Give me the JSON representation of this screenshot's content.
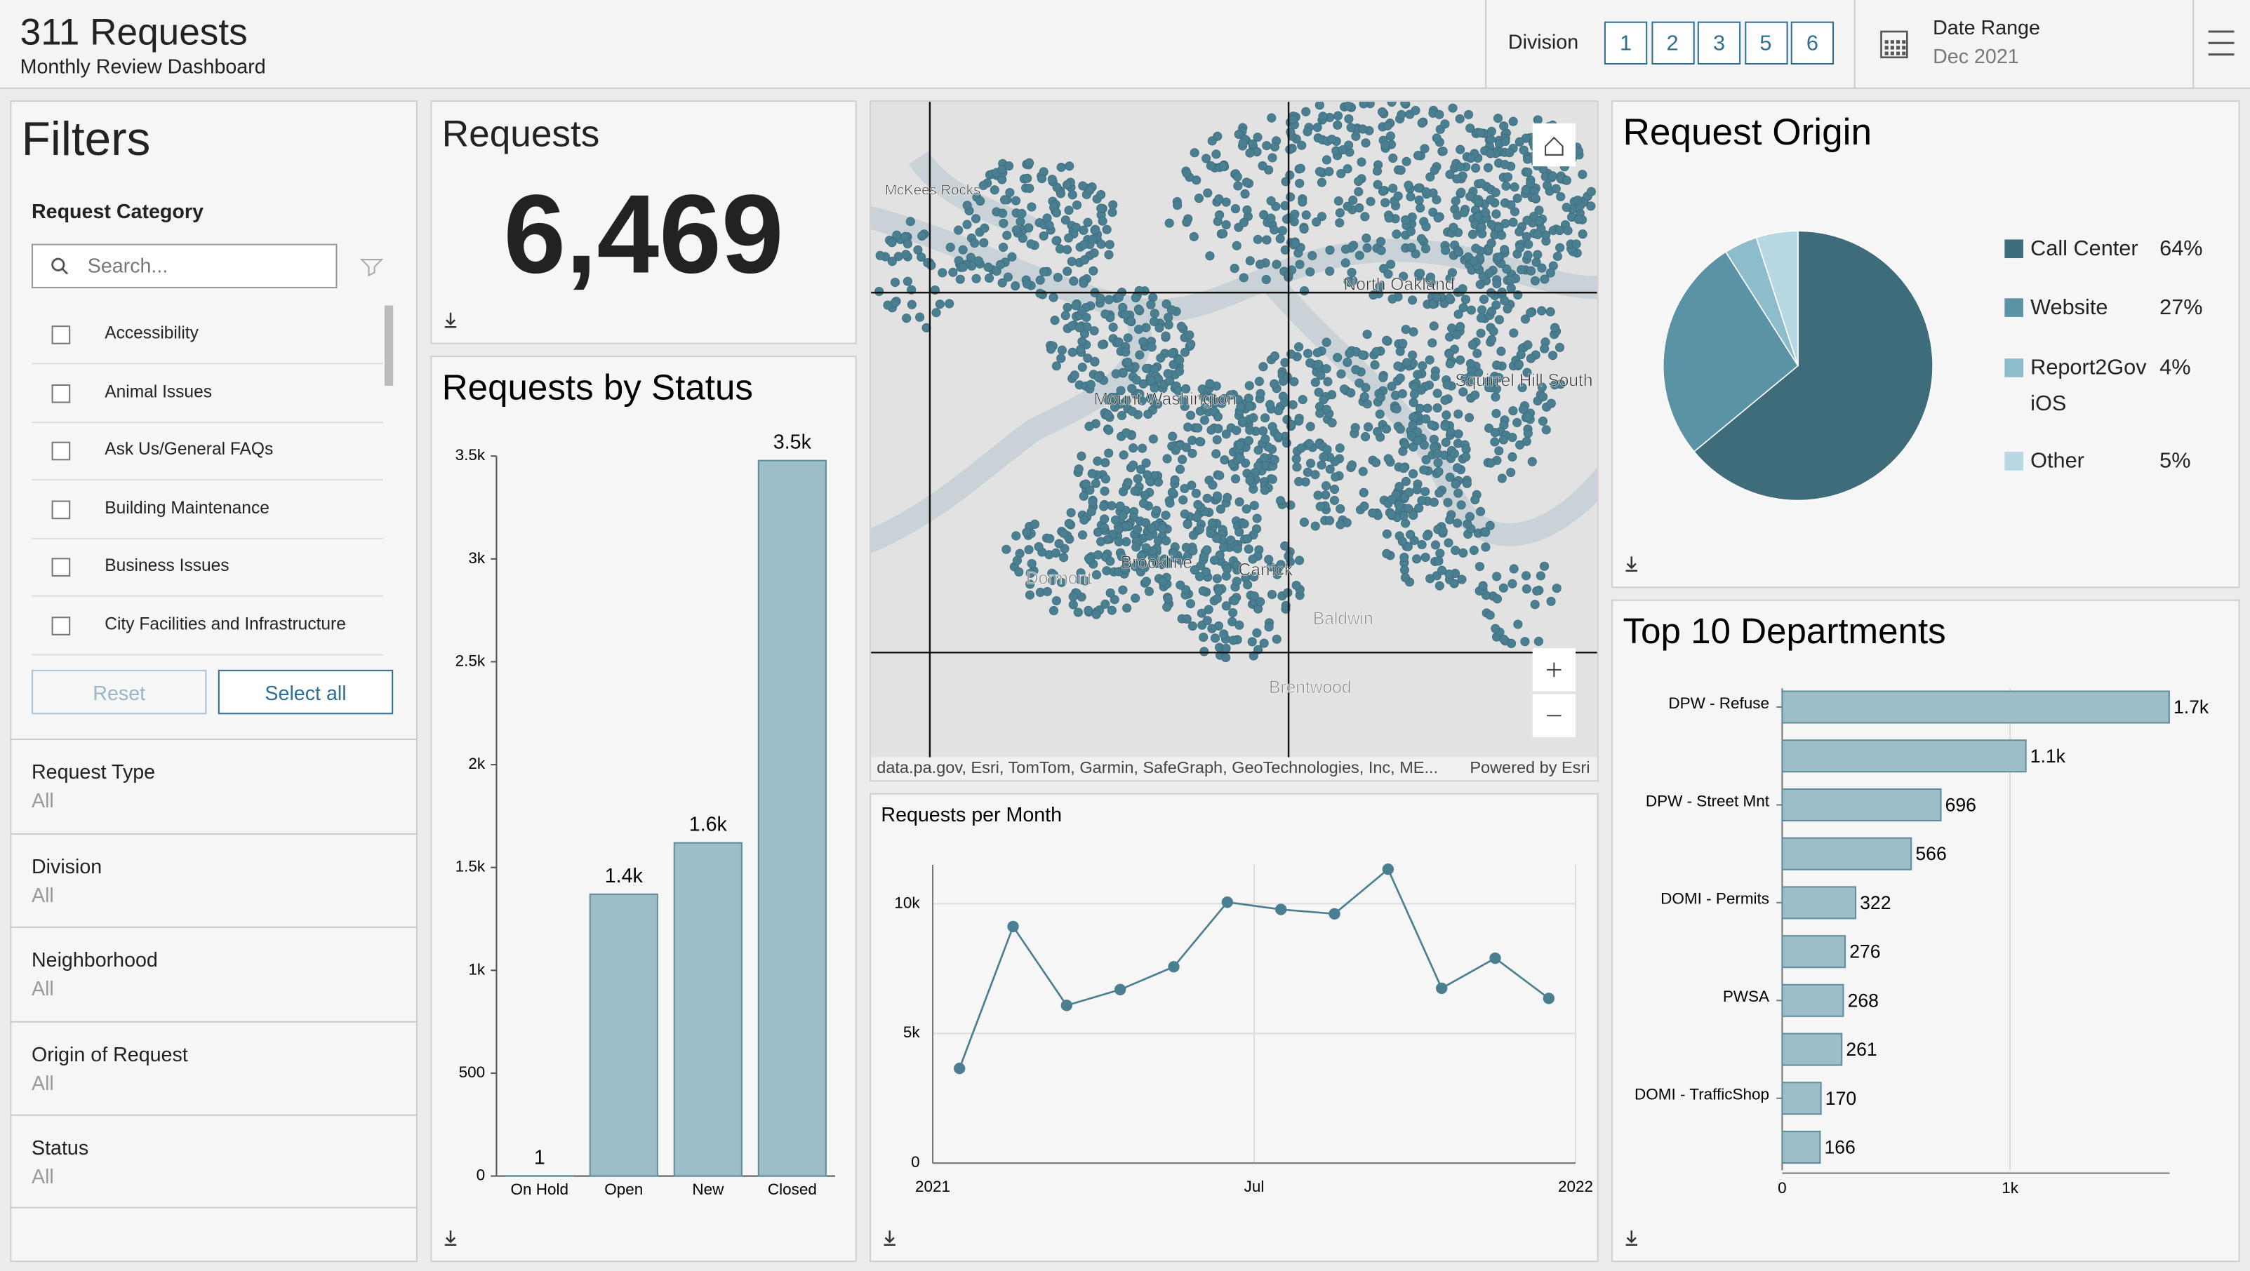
{
  "header": {
    "title": "311 Requests",
    "subtitle": "Monthly Review Dashboard",
    "division_label": "Division",
    "divisions": [
      "1",
      "2",
      "3",
      "5",
      "6"
    ],
    "date_label": "Date Range",
    "date_value": "Dec 2021"
  },
  "filters": {
    "title": "Filters",
    "category_label": "Request Category",
    "search_placeholder": "Search...",
    "categories": [
      "Accessibility",
      "Animal Issues",
      "Ask Us/General FAQs",
      "Building Maintenance",
      "Business Issues",
      "City Facilities and Infrastructure"
    ],
    "reset": "Reset",
    "select_all": "Select all",
    "groups": [
      {
        "label": "Request Type",
        "value": "All"
      },
      {
        "label": "Division",
        "value": "All"
      },
      {
        "label": "Neighborhood",
        "value": "All"
      },
      {
        "label": "Origin of Request",
        "value": "All"
      },
      {
        "label": "Status",
        "value": "All"
      }
    ]
  },
  "requests": {
    "title": "Requests",
    "value": "6,469"
  },
  "map": {
    "places": [
      "McKees Rocks",
      "North Oakland",
      "Mount Washington",
      "Squirrel Hill South",
      "Brookline",
      "Carrick",
      "Dormont",
      "Baldwin",
      "Brentwood"
    ],
    "attribution": "data.pa.gov, Esri, TomTom, Garmin, SafeGraph, GeoTechnologies, Inc, ME...",
    "powered": "Powered by Esri"
  },
  "chart_data": [
    {
      "type": "bar",
      "title": "Requests by Status",
      "categories": [
        "On Hold",
        "Open",
        "New",
        "Closed"
      ],
      "values": [
        1,
        1370,
        1620,
        3478
      ],
      "value_labels": [
        "1",
        "1.4k",
        "1.6k",
        "3.5k"
      ],
      "color": "#9dbdc8",
      "ylim": [
        0,
        3500
      ],
      "yticks": [
        0,
        500,
        {
          "value": 1000,
          "label": "1k"
        },
        {
          "value": 1500,
          "label": "1.5k"
        },
        {
          "value": 2000,
          "label": "2k"
        },
        {
          "value": 2500,
          "label": "2.5k"
        },
        {
          "value": 3000,
          "label": "3k"
        },
        {
          "value": 3500,
          "label": "3.5k"
        }
      ],
      "grid": false
    },
    {
      "type": "line",
      "title": "Requests per Month",
      "x": [
        "2021-01",
        "2021-02",
        "2021-03",
        "2021-04",
        "2021-05",
        "2021-06",
        "2021-07",
        "2021-08",
        "2021-09",
        "2021-10",
        "2021-11",
        "2021-12"
      ],
      "values": [
        3650,
        9120,
        6080,
        6690,
        7570,
        10060,
        9780,
        9610,
        11330,
        6740,
        7900,
        6350
      ],
      "color": "#4a7f91",
      "xlim": [
        "2021-01",
        "2022-01"
      ],
      "xticks": [
        {
          "value": "2021-01",
          "label": "2021"
        },
        {
          "value": "2021-07",
          "label": "Jul"
        },
        {
          "value": "2022-01",
          "label": "2022"
        }
      ],
      "ylim": [
        0,
        11500
      ],
      "yticks": [
        0,
        {
          "value": 5000,
          "label": "5k"
        },
        {
          "value": 10000,
          "label": "10k"
        }
      ],
      "grid": true
    },
    {
      "type": "pie",
      "title": "Request Origin",
      "categories": [
        "Call Center",
        "Website",
        "Report2Gov iOS",
        "Other"
      ],
      "values": [
        64,
        27,
        4,
        5
      ],
      "value_labels": [
        "64%",
        "27%",
        "4%",
        "5%"
      ],
      "colors": [
        "#3f6c7b",
        "#5a93a6",
        "#8dbccb",
        "#b7d7e2"
      ]
    },
    {
      "type": "barh",
      "title": "Top 10 Departments",
      "categories": [
        "DPW - Refuse",
        null,
        "DPW - Street Mnt",
        null,
        "DOMI - Permits",
        null,
        "PWSA",
        null,
        "DOMI - TrafficShop",
        null
      ],
      "values": [
        1698,
        1069,
        696,
        566,
        322,
        276,
        268,
        261,
        170,
        166
      ],
      "value_labels": [
        "1.7k",
        "1.1k",
        "696",
        "566",
        "322",
        "276",
        "268",
        "261",
        "170",
        "166"
      ],
      "color": "#9dbdc8",
      "xlim": [
        0,
        1700
      ],
      "xticks": [
        0,
        {
          "value": 1000,
          "label": "1k"
        }
      ],
      "grid": true
    }
  ]
}
